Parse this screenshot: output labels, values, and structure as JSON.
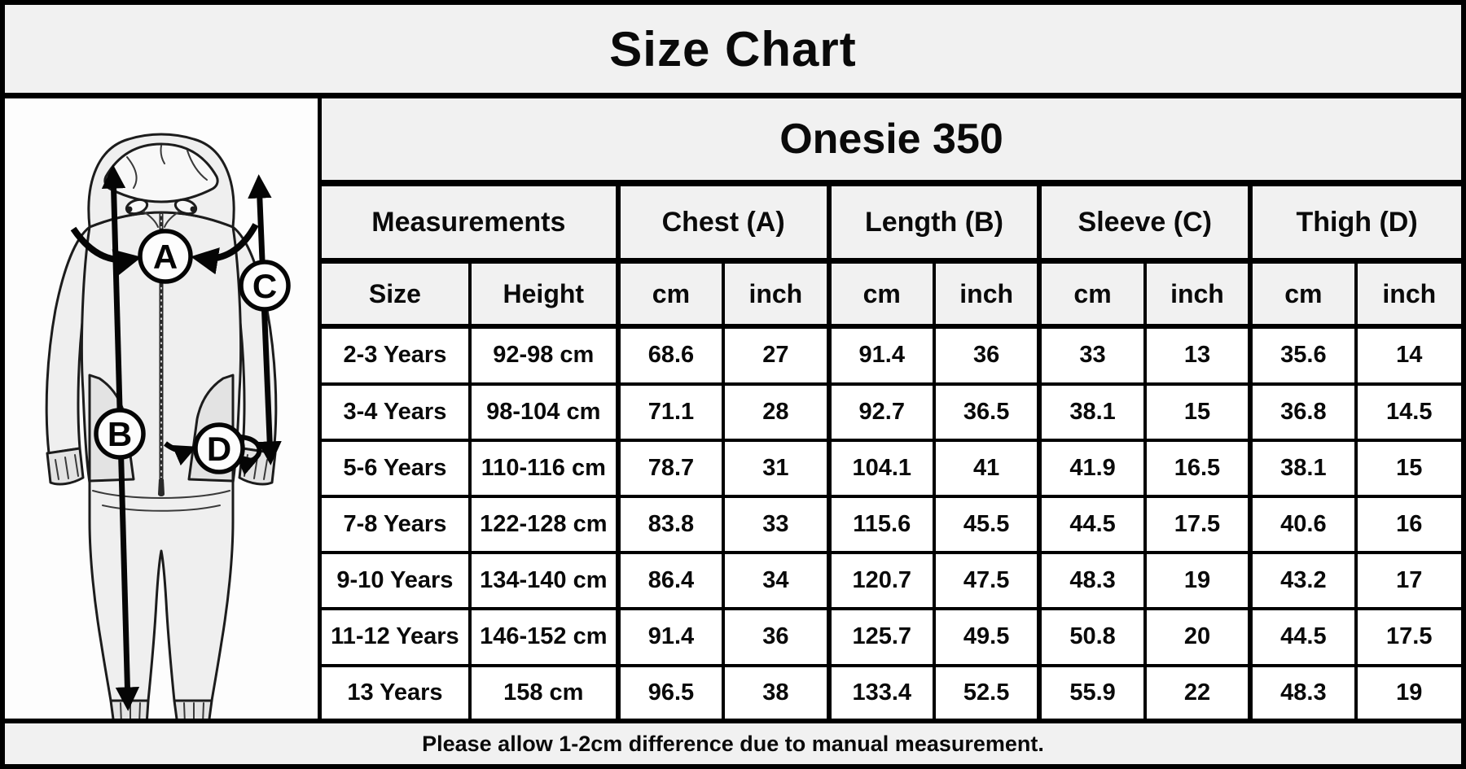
{
  "title": "Size Chart",
  "product_title": "Onesie 350",
  "footer_note": "Please allow 1-2cm difference due to manual measurement.",
  "colors": {
    "band_background": "#f1f1f1",
    "cell_background": "#ffffff",
    "border": "#000000",
    "text": "#0a0a0a"
  },
  "diagram": {
    "description": "hooded-onesie-line-drawing-with-measurement-arrows",
    "point_labels": [
      "A",
      "B",
      "C",
      "D"
    ]
  },
  "table": {
    "group_headers": [
      {
        "label": "Measurements",
        "span": 2
      },
      {
        "label": "Chest (A)",
        "span": 2
      },
      {
        "label": "Length (B)",
        "span": 2
      },
      {
        "label": "Sleeve (C)",
        "span": 2
      },
      {
        "label": "Thigh (D)",
        "span": 2
      }
    ],
    "sub_headers": [
      "Size",
      "Height",
      "cm",
      "inch",
      "cm",
      "inch",
      "cm",
      "inch",
      "cm",
      "inch"
    ]
  },
  "chart_data": {
    "type": "table",
    "title": "Size Chart",
    "subtitle": "Onesie 350",
    "columns": [
      "Size",
      "Height",
      "Chest (A) cm",
      "Chest (A) inch",
      "Length (B) cm",
      "Length (B) inch",
      "Sleeve (C) cm",
      "Sleeve (C) inch",
      "Thigh (D) cm",
      "Thigh (D) inch"
    ],
    "rows": [
      [
        "2-3 Years",
        "92-98 cm",
        "68.6",
        "27",
        "91.4",
        "36",
        "33",
        "13",
        "35.6",
        "14"
      ],
      [
        "3-4 Years",
        "98-104 cm",
        "71.1",
        "28",
        "92.7",
        "36.5",
        "38.1",
        "15",
        "36.8",
        "14.5"
      ],
      [
        "5-6 Years",
        "110-116 cm",
        "78.7",
        "31",
        "104.1",
        "41",
        "41.9",
        "16.5",
        "38.1",
        "15"
      ],
      [
        "7-8 Years",
        "122-128 cm",
        "83.8",
        "33",
        "115.6",
        "45.5",
        "44.5",
        "17.5",
        "40.6",
        "16"
      ],
      [
        "9-10 Years",
        "134-140 cm",
        "86.4",
        "34",
        "120.7",
        "47.5",
        "48.3",
        "19",
        "43.2",
        "17"
      ],
      [
        "11-12 Years",
        "146-152 cm",
        "91.4",
        "36",
        "125.7",
        "49.5",
        "50.8",
        "20",
        "44.5",
        "17.5"
      ],
      [
        "13 Years",
        "158 cm",
        "96.5",
        "38",
        "133.4",
        "52.5",
        "55.9",
        "22",
        "48.3",
        "19"
      ]
    ],
    "note": "Please allow 1-2cm difference due to manual measurement."
  }
}
